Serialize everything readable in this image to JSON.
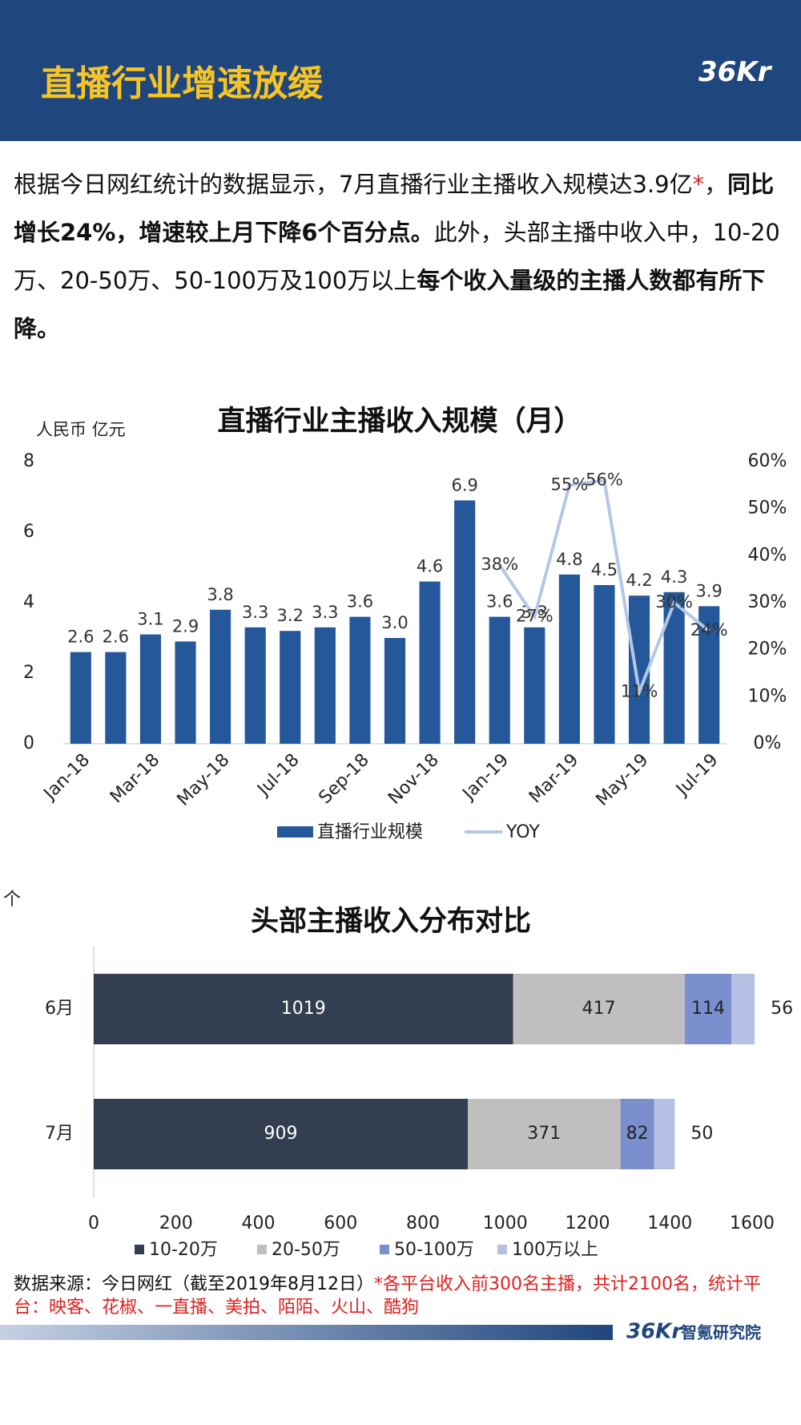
{
  "header": {
    "title": "直播行业增速放缓",
    "logo": "36Kr"
  },
  "paragraph": [
    {
      "text": "根据今日网红统计的数据显示，7月直播行业主播收入规模达3.9亿"
    },
    {
      "text": "*",
      "color": "#e02020"
    },
    {
      "text": "，"
    },
    {
      "text": "同比增长24%，增速较上月下降6个百分点。",
      "bold": true
    },
    {
      "text": "此外，头部主播中收入中，10-20万、20-50万、50-100万及100万以上"
    },
    {
      "text": "每个收入量级的主播人数都有所下降。",
      "bold": true
    }
  ],
  "chart_data": [
    {
      "type": "bar",
      "title": "直播行业主播收入规模（月）",
      "y_label": "人民币 亿元",
      "categories": [
        "Jan-18",
        null,
        "Mar-18",
        null,
        "May-18",
        null,
        "Jul-18",
        null,
        "Sep-18",
        null,
        "Nov-18",
        null,
        "Jan-19",
        null,
        "Mar-19",
        null,
        "May-19",
        null,
        "Jul-19"
      ],
      "series": [
        {
          "name": "直播行业规模",
          "color": "#24589a",
          "values": [
            2.6,
            2.6,
            3.1,
            2.9,
            3.8,
            3.3,
            3.2,
            3.3,
            3.6,
            3.0,
            4.6,
            6.9,
            3.6,
            3.3,
            4.8,
            4.5,
            4.2,
            4.3,
            3.9
          ],
          "value_labels": [
            "2.6",
            "2.6",
            "3.1",
            "2.9",
            "3.8",
            "3.3",
            "3.2",
            "3.3",
            "3.6",
            "3.0",
            "4.6",
            "6.9",
            "3.6",
            "3.3",
            "4.8",
            "4.5",
            "4.2",
            "4.3",
            "3.9"
          ]
        },
        {
          "name": "YOY",
          "type": "line",
          "axis": "y2",
          "color": "#b4c7e7",
          "values": [
            null,
            null,
            null,
            null,
            null,
            null,
            null,
            null,
            null,
            null,
            null,
            null,
            38,
            27,
            55,
            56,
            11,
            30,
            24
          ],
          "value_labels": [
            null,
            null,
            null,
            null,
            null,
            null,
            null,
            null,
            null,
            null,
            null,
            null,
            "38%",
            "27%",
            "55%",
            "56%",
            "11%",
            "30%",
            "24%"
          ]
        }
      ],
      "ylim": [
        0,
        8
      ],
      "yticks": [
        0,
        2,
        4,
        6,
        8
      ],
      "y2lim": [
        0,
        60
      ],
      "y2ticks": [
        {
          "value": 0,
          "label": "0%"
        },
        {
          "value": 10,
          "label": "10%"
        },
        {
          "value": 20,
          "label": "20%"
        },
        {
          "value": 30,
          "label": "30%"
        },
        {
          "value": 40,
          "label": "40%"
        },
        {
          "value": 50,
          "label": "50%"
        },
        {
          "value": 60,
          "label": "60%"
        }
      ]
    },
    {
      "type": "bar",
      "orientation": "horizontal",
      "stacked": true,
      "title": "头部主播收入分布对比",
      "unit_label": "个",
      "categories": [
        "6月",
        "7月"
      ],
      "series": [
        {
          "name": "10-20万",
          "color": "#333f50",
          "values": [
            1019,
            909
          ]
        },
        {
          "name": "20-50万",
          "color": "#bfbfbf",
          "values": [
            417,
            371
          ]
        },
        {
          "name": "50-100万",
          "color": "#7b8fcf",
          "values": [
            114,
            82
          ]
        },
        {
          "name": "100万以上",
          "color": "#b4c0e4",
          "values": [
            56,
            50
          ]
        }
      ],
      "xlim": [
        0,
        1600
      ],
      "xticks": [
        0,
        200,
        400,
        600,
        800,
        1000,
        1200,
        1400,
        1600
      ]
    }
  ],
  "source": [
    {
      "text": "数据来源：今日网红（截至2019年8月12日）"
    },
    {
      "text": "*各平台收入前300名主播，共计2100名，统计平台：映客、花椒、一直播、美拍、陌陌、火山、酷狗",
      "color": "#e02020"
    }
  ],
  "footer": {
    "logo": "36Kr",
    "org": "智氪研究院"
  }
}
